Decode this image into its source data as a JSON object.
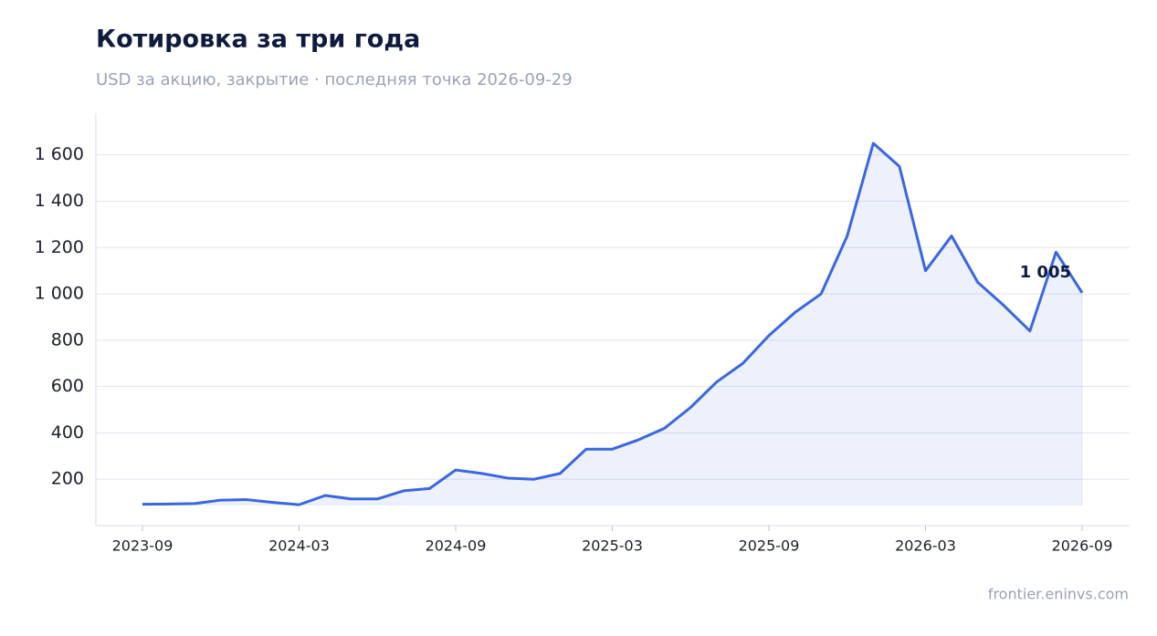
{
  "chart_data": {
    "type": "line",
    "title": "Котировка за три года",
    "subtitle": "USD за акцию, закрытие · последняя точка 2026-09-29",
    "source": "frontier.eninvs.com",
    "x": [
      "2023-09",
      "2023-10",
      "2023-11",
      "2023-12",
      "2024-01",
      "2024-02",
      "2024-03",
      "2024-04",
      "2024-05",
      "2024-06",
      "2024-07",
      "2024-08",
      "2024-09",
      "2024-10",
      "2024-11",
      "2024-12",
      "2025-01",
      "2025-02",
      "2025-03",
      "2025-04",
      "2025-05",
      "2025-06",
      "2025-07",
      "2025-08",
      "2025-09",
      "2025-10",
      "2025-11",
      "2025-12",
      "2026-01",
      "2026-02",
      "2026-03",
      "2026-04",
      "2026-05",
      "2026-06",
      "2026-07",
      "2026-08",
      "2026-09"
    ],
    "xticks": [
      "2023-09",
      "2024-03",
      "2024-09",
      "2025-03",
      "2025-09",
      "2026-03",
      "2026-09"
    ],
    "series": [
      {
        "name": "USD",
        "color": "#3a66e0",
        "values": [
          92,
          93,
          95,
          110,
          112,
          100,
          90,
          130,
          115,
          115,
          150,
          160,
          240,
          225,
          205,
          200,
          225,
          330,
          330,
          370,
          420,
          510,
          620,
          700,
          820,
          920,
          1000,
          1250,
          1650,
          1550,
          1100,
          1250,
          1050,
          950,
          840,
          1180,
          1005
        ]
      }
    ],
    "last_value_label": "1 005",
    "ylim": [
      0,
      1780
    ],
    "yticks": [
      200,
      400,
      600,
      800,
      {
        "value": 1000,
        "label": "1 000"
      },
      {
        "value": 1200,
        "label": "1 200"
      },
      {
        "value": 1400,
        "label": "1 400"
      },
      {
        "value": 1600,
        "label": "1 600"
      }
    ],
    "grid": true
  }
}
